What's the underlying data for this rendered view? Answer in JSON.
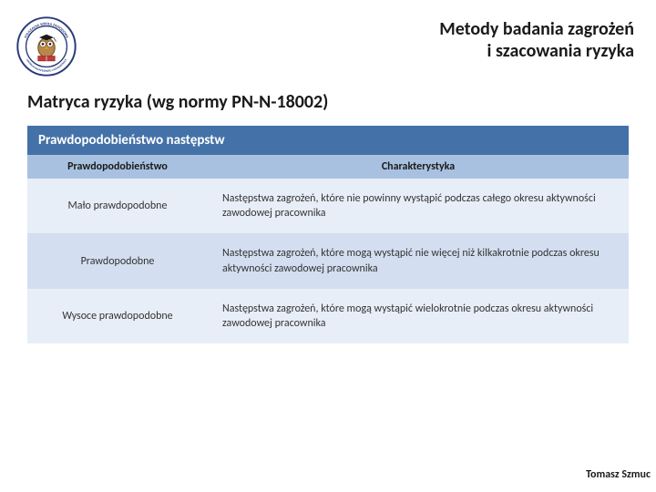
{
  "colors": {
    "banner_bg": "#4472a8",
    "header_row_bg": "#a9c1e0",
    "row_even_bg": "#e8eef7",
    "row_odd_bg": "#d3dff0",
    "text_dark": "#1a1a1a",
    "text_body": "#333333"
  },
  "typography": {
    "title_fontsize": 20,
    "subtitle_fontsize": 20,
    "banner_fontsize": 15,
    "th_fontsize": 12,
    "td_fontsize": 12,
    "footer_fontsize": 12
  },
  "title": {
    "line1": "Metody badania zagrożeń",
    "line2": "i szacowania ryzyka"
  },
  "subtitle": "Matryca ryzyka (wg normy PN-N-18002)",
  "table": {
    "banner": "Prawdopodobieństwo następstw",
    "columns": [
      "Prawdopodobieństwo",
      "Charakterystyka"
    ],
    "col_widths_pct": [
      30,
      70
    ],
    "rows": [
      [
        "Mało prawdopodobne",
        "Następstwa zagrożeń, które nie powinny wystąpić podczas całego okresu aktywności zawodowej pracownika"
      ],
      [
        "Prawdopodobne",
        "Następstwa zagrożeń, które mogą wystąpić nie więcej niż kilkakrotnie podczas okresu aktywności zawodowej pracownika"
      ],
      [
        "Wysoce prawdopodobne",
        "Następstwa zagrożeń, które mogą wystąpić wielokrotnie podczas okresu aktywności zawodowej pracownika"
      ]
    ]
  },
  "footer": "Tomasz Szmuc",
  "logo": {
    "outer_ring_top_text": "POLICEALNA SZKOŁA ZAWODOWA",
    "outer_ring_bottom_text": "CENTRUM NAUKI BIZNESU I ADMINISTRACJI",
    "ring_color": "#2a3a7a",
    "owl_body": "#b8874a",
    "owl_outline": "#6b4a1f",
    "book_color": "#c33a3a",
    "cap_color": "#1a1a1a"
  }
}
